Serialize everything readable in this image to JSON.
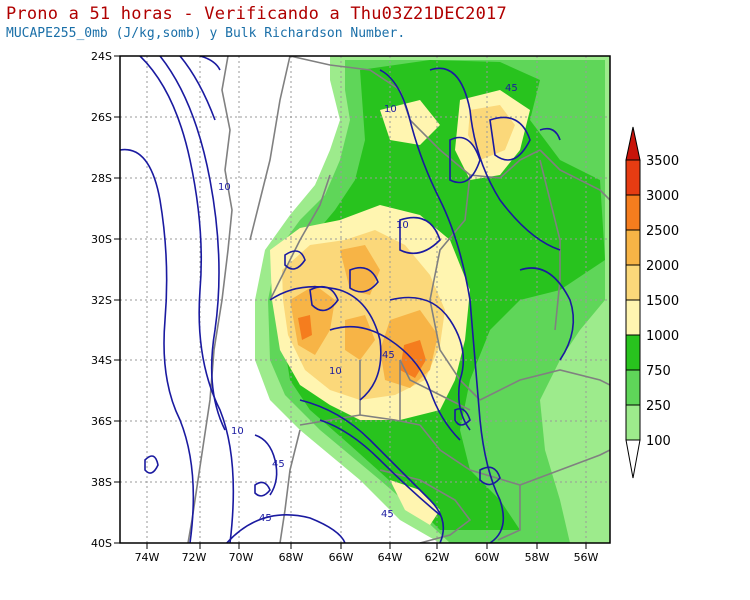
{
  "title": "Prono a 51 horas - Verificando a Thu03Z21DEC2017",
  "subtitle": "MUCAPE255_0mb (J/kg,somb) y Bulk Richardson Number.",
  "map": {
    "lat_ticks": [
      "24S",
      "26S",
      "28S",
      "30S",
      "32S",
      "34S",
      "36S",
      "38S",
      "40S"
    ],
    "lon_ticks": [
      "74W",
      "72W",
      "70W",
      "68W",
      "66W",
      "64W",
      "62W",
      "60W",
      "58W",
      "56W"
    ],
    "contour_labels": [
      "10",
      "10",
      "10",
      "10",
      "10",
      "45",
      "45",
      "45",
      "45",
      "45"
    ]
  },
  "colorbar": {
    "labels": [
      "3500",
      "3000",
      "2500",
      "2000",
      "1500",
      "1000",
      "750",
      "250",
      "100"
    ],
    "colors": {
      "above_3500": "#c8140a",
      "3000": "#e63c12",
      "2500": "#f57d1e",
      "2000": "#f7b446",
      "1500": "#fbd87a",
      "1000": "#fff5b0",
      "750": "#28c31e",
      "250": "#5fd659",
      "100": "#9deb8c",
      "below_100": "#ffffff"
    }
  },
  "colors": {
    "contour": "#1a1aa0",
    "border": "#808080",
    "title": "#b00000",
    "subtitle": "#1a6fa8"
  }
}
